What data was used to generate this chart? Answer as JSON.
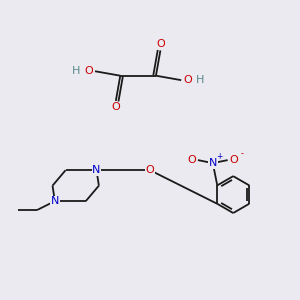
{
  "background_color": "#eaeaf0",
  "bond_color": "#1a1a1a",
  "atom_colors": {
    "O": "#cc0000",
    "N": "#0000cc",
    "H": "#5a8a8a",
    "C": "#1a1a1a"
  }
}
